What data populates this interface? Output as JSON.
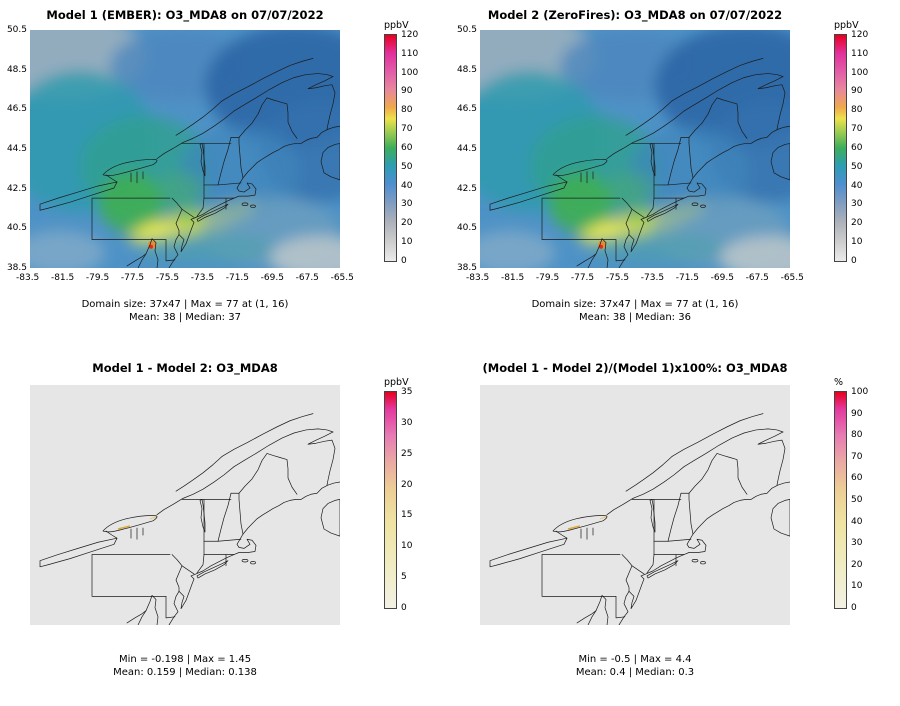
{
  "figure": {
    "background": "#ffffff"
  },
  "colors": {
    "map_base": "#4E92C6",
    "diff_base": "#E6E6E6",
    "outline": "#1b1b1b",
    "main_gradient_stops": [
      "#EBEBEB 0%",
      "#CFCFCF 8%",
      "#AEB2BA 17%",
      "#7E9CC2 26%",
      "#4E8FD0 34%",
      "#2D9DB4 42%",
      "#3DAE5C 50%",
      "#9CCB50 57%",
      "#EEE24C 63%",
      "#EFA94E 68%",
      "#E8879E 76%",
      "#E25CA8 84%",
      "#E2309B 92%",
      "#E8001F 100%"
    ],
    "diff_gradient_stops": [
      "#F2F1E4 0%",
      "#F0ECC2 20%",
      "#EFE3A2 40%",
      "#EDCE96 55%",
      "#EAA8A4 68%",
      "#E77BB4 80%",
      "#E4399E 92%",
      "#E8001F 100%"
    ]
  },
  "chart_data": [
    {
      "type": "heatmap",
      "panel": "top-left",
      "title": "Model 1 (EMBER): O3_MDA8 on 07/07/2022",
      "xlabel": "",
      "ylabel": "",
      "x_ticks": [
        -83.5,
        -81.5,
        -79.5,
        -77.5,
        -75.5,
        -73.5,
        -71.5,
        -69.5,
        -67.5,
        -65.5
      ],
      "y_ticks": [
        50.5,
        48.5,
        46.5,
        44.5,
        42.5,
        40.5,
        38.5
      ],
      "x_tick_labels": [
        "-83.5",
        "-81.5",
        "-79.5",
        "-77.5",
        "-75.5",
        "-73.5",
        "-71.5",
        "-69.5",
        "-67.5",
        "-65.5"
      ],
      "y_tick_labels": [
        "50.5",
        "48.5",
        "46.5",
        "44.5",
        "42.5",
        "40.5",
        "38.5"
      ],
      "colorbar": {
        "label": "ppbV",
        "range": [
          0,
          120
        ],
        "tick_labels": [
          "120",
          "110",
          "100",
          "90",
          "80",
          "70",
          "60",
          "50",
          "40",
          "30",
          "20",
          "10",
          "0"
        ]
      },
      "stats": {
        "domain_size": "37x47",
        "max": 77,
        "max_at": "(1, 16)",
        "mean": 38,
        "median": 37
      },
      "caption_line1": "Domain size: 37x47 | Max = 77 at (1, 16)",
      "caption_line2": "Mean: 38 |  Median: 37"
    },
    {
      "type": "heatmap",
      "panel": "top-right",
      "title": "Model 2 (ZeroFires): O3_MDA8 on 07/07/2022",
      "xlabel": "",
      "ylabel": "",
      "x_ticks": [
        -83.5,
        -81.5,
        -79.5,
        -77.5,
        -75.5,
        -73.5,
        -71.5,
        -69.5,
        -67.5,
        -65.5
      ],
      "y_ticks": [
        50.5,
        48.5,
        46.5,
        44.5,
        42.5,
        40.5,
        38.5
      ],
      "x_tick_labels": [
        "-83.5",
        "-81.5",
        "-79.5",
        "-77.5",
        "-75.5",
        "-73.5",
        "-71.5",
        "-69.5",
        "-67.5",
        "-65.5"
      ],
      "y_tick_labels": [
        "50.5",
        "48.5",
        "46.5",
        "44.5",
        "42.5",
        "40.5",
        "38.5"
      ],
      "colorbar": {
        "label": "ppbV",
        "range": [
          0,
          120
        ],
        "tick_labels": [
          "120",
          "110",
          "100",
          "90",
          "80",
          "70",
          "60",
          "50",
          "40",
          "30",
          "20",
          "10",
          "0"
        ]
      },
      "stats": {
        "domain_size": "37x47",
        "max": 77,
        "max_at": "(1, 16)",
        "mean": 38,
        "median": 36
      },
      "caption_line1": "Domain size: 37x47 | Max = 77 at (1, 16)",
      "caption_line2": "Mean: 38 |  Median: 36"
    },
    {
      "type": "heatmap",
      "panel": "bottom-left",
      "title": "Model 1 - Model 2: O3_MDA8",
      "xlabel": "",
      "ylabel": "",
      "colorbar": {
        "label": "ppbV",
        "range": [
          0,
          35
        ],
        "tick_labels": [
          "35",
          "30",
          "25",
          "20",
          "15",
          "10",
          "5",
          "0"
        ]
      },
      "stats": {
        "min": -0.198,
        "max": 1.45,
        "mean": 0.159,
        "median": 0.138
      },
      "caption_line1": "Min = -0.198 | Max = 1.45",
      "caption_line2": "Mean: 0.159 |  Median: 0.138"
    },
    {
      "type": "heatmap",
      "panel": "bottom-right",
      "title": "(Model 1 - Model 2)/(Model 1)x100%: O3_MDA8",
      "xlabel": "",
      "ylabel": "",
      "colorbar": {
        "label": "%",
        "range": [
          0,
          100
        ],
        "tick_labels": [
          "100",
          "90",
          "80",
          "70",
          "60",
          "50",
          "40",
          "30",
          "20",
          "10",
          "0"
        ]
      },
      "stats": {
        "min": -0.5,
        "max": 4.4,
        "mean": 0.4,
        "median": 0.3
      },
      "caption_line1": "Min = -0.5 | Max = 4.4",
      "caption_line2": "Mean: 0.4 |  Median: 0.3"
    }
  ]
}
